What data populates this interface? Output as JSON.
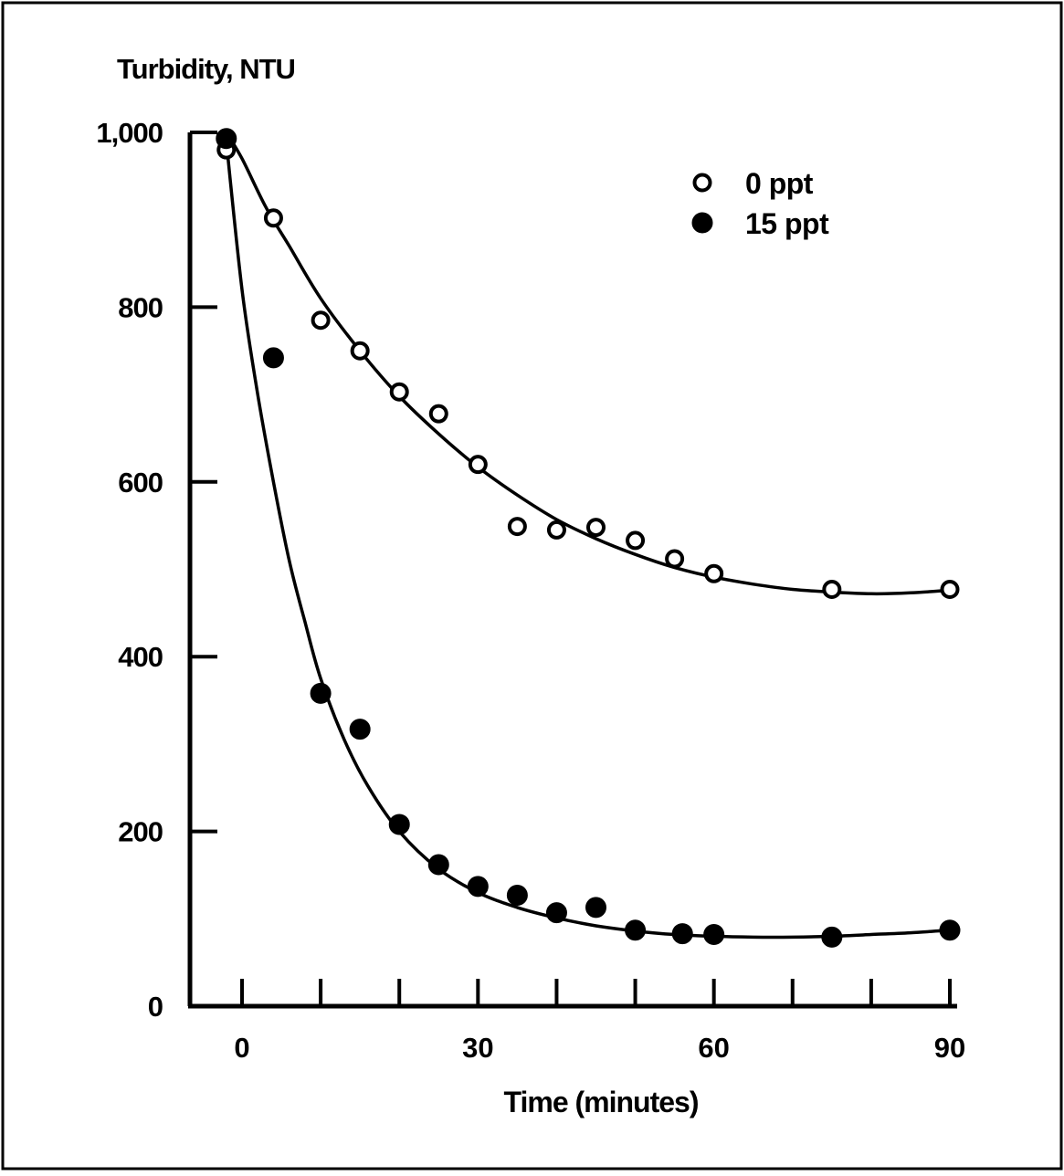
{
  "chart_data": {
    "type": "scatter",
    "title": "",
    "ylabel": "Turbidity, NTU",
    "xlabel": "Time (minutes)",
    "xlim": [
      -6,
      92
    ],
    "ylim": [
      0,
      1000
    ],
    "x_ticks": [
      0,
      10,
      20,
      30,
      40,
      50,
      60,
      70,
      80,
      90
    ],
    "x_tick_labels": [
      {
        "x": 0,
        "label": "0"
      },
      {
        "x": 30,
        "label": "30"
      },
      {
        "x": 60,
        "label": "60"
      },
      {
        "x": 90,
        "label": "90"
      }
    ],
    "y_ticks": [
      {
        "y": 0,
        "label": "0"
      },
      {
        "y": 200,
        "label": "200"
      },
      {
        "y": 400,
        "label": "400"
      },
      {
        "y": 600,
        "label": "600"
      },
      {
        "y": 800,
        "label": "800"
      },
      {
        "y": 1000,
        "label": "1,000"
      }
    ],
    "grid": false,
    "legend_position": "top-right",
    "series": [
      {
        "name": "0 ppt",
        "marker": "open-circle",
        "points": [
          [
            -2,
            980
          ],
          [
            4,
            902
          ],
          [
            10,
            785
          ],
          [
            15,
            750
          ],
          [
            20,
            703
          ],
          [
            25,
            678
          ],
          [
            30,
            620
          ],
          [
            35,
            549
          ],
          [
            40,
            545
          ],
          [
            45,
            548
          ],
          [
            50,
            533
          ],
          [
            55,
            512
          ],
          [
            60,
            495
          ],
          [
            75,
            477
          ],
          [
            90,
            477
          ]
        ],
        "fit_curve": [
          [
            -2,
            1000
          ],
          [
            0,
            970
          ],
          [
            3,
            915
          ],
          [
            6,
            870
          ],
          [
            10,
            810
          ],
          [
            15,
            750
          ],
          [
            20,
            698
          ],
          [
            25,
            655
          ],
          [
            30,
            617
          ],
          [
            35,
            585
          ],
          [
            40,
            557
          ],
          [
            45,
            535
          ],
          [
            50,
            517
          ],
          [
            55,
            502
          ],
          [
            60,
            491
          ],
          [
            65,
            483
          ],
          [
            70,
            477
          ],
          [
            75,
            474
          ],
          [
            80,
            472
          ],
          [
            85,
            473
          ],
          [
            90,
            476
          ]
        ]
      },
      {
        "name": "15 ppt",
        "marker": "filled-circle",
        "points": [
          [
            -2,
            993
          ],
          [
            4,
            742
          ],
          [
            10,
            358
          ],
          [
            15,
            317
          ],
          [
            20,
            208
          ],
          [
            25,
            162
          ],
          [
            30,
            137
          ],
          [
            35,
            127
          ],
          [
            40,
            107
          ],
          [
            45,
            113
          ],
          [
            50,
            87
          ],
          [
            56,
            83
          ],
          [
            60,
            82
          ],
          [
            75,
            79
          ],
          [
            90,
            87
          ]
        ],
        "fit_curve": [
          [
            -2,
            990
          ],
          [
            0,
            820
          ],
          [
            2,
            700
          ],
          [
            4,
            600
          ],
          [
            6,
            510
          ],
          [
            8,
            440
          ],
          [
            10,
            375
          ],
          [
            13,
            305
          ],
          [
            16,
            252
          ],
          [
            20,
            200
          ],
          [
            25,
            157
          ],
          [
            30,
            130
          ],
          [
            35,
            113
          ],
          [
            40,
            101
          ],
          [
            45,
            92
          ],
          [
            50,
            86
          ],
          [
            55,
            82
          ],
          [
            60,
            80
          ],
          [
            65,
            79
          ],
          [
            70,
            79
          ],
          [
            75,
            80
          ],
          [
            80,
            82
          ],
          [
            85,
            84
          ],
          [
            90,
            87
          ]
        ]
      }
    ]
  }
}
